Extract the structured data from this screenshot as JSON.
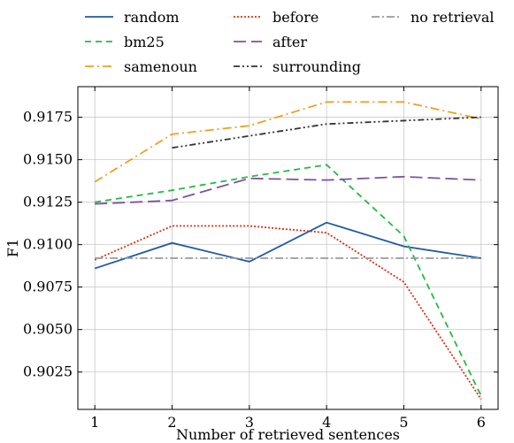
{
  "chart_data": {
    "type": "line",
    "xlabel": "Number of retrieved sentences",
    "ylabel": "F1",
    "xlim": [
      0.78,
      6.22
    ],
    "ylim": [
      0.9003,
      0.9193
    ],
    "xticks": [
      1,
      2,
      3,
      4,
      5,
      6
    ],
    "yticks": [
      0.9025,
      0.905,
      0.9075,
      0.91,
      0.9125,
      0.915,
      0.9175
    ],
    "ytick_labels": [
      "0.9025",
      "0.9050",
      "0.9075",
      "0.9100",
      "0.9125",
      "0.9150",
      "0.9175"
    ],
    "grid": true,
    "legend_position": "top",
    "series": [
      {
        "name": "random",
        "color": "#1f5aa6",
        "dash": "",
        "x": [
          1,
          2,
          3,
          4,
          5,
          6
        ],
        "y": [
          0.9086,
          0.9101,
          0.909,
          0.9113,
          0.9099,
          0.9092
        ]
      },
      {
        "name": "bm25",
        "color": "#22bb44",
        "dash": "7 5",
        "x": [
          1,
          2,
          3,
          4,
          5,
          6
        ],
        "y": [
          0.9125,
          0.9132,
          0.914,
          0.9147,
          0.9105,
          0.9011
        ]
      },
      {
        "name": "samenoun",
        "color": "#f0a020",
        "dash": "10 4 2 4",
        "x": [
          1,
          2,
          3,
          4,
          5,
          6
        ],
        "y": [
          0.9137,
          0.9165,
          0.917,
          0.9184,
          0.9184,
          0.9174
        ]
      },
      {
        "name": "before",
        "color": "#e03010",
        "dash": "2 2",
        "x": [
          1,
          2,
          3,
          4,
          5,
          6
        ],
        "y": [
          0.9091,
          0.9111,
          0.9111,
          0.9107,
          0.9078,
          0.9009
        ]
      },
      {
        "name": "after",
        "color": "#8050a0",
        "dash": "14 6",
        "x": [
          1,
          2,
          3,
          4,
          5,
          6
        ],
        "y": [
          0.9124,
          0.9126,
          0.9139,
          0.9138,
          0.914,
          0.9138
        ]
      },
      {
        "name": "surrounding",
        "color": "#333333",
        "dash": "7 3 2 3 2 3",
        "x": [
          2,
          3,
          4,
          5,
          6
        ],
        "y": [
          0.9157,
          0.9164,
          0.9171,
          0.9173,
          0.9175
        ]
      },
      {
        "name": "no retrieval",
        "color": "#999999",
        "dash": "9 3 2 3",
        "x": [
          1,
          2,
          3,
          4,
          5,
          6
        ],
        "y": [
          0.9092,
          0.9092,
          0.9092,
          0.9092,
          0.9092,
          0.9092
        ]
      }
    ]
  }
}
